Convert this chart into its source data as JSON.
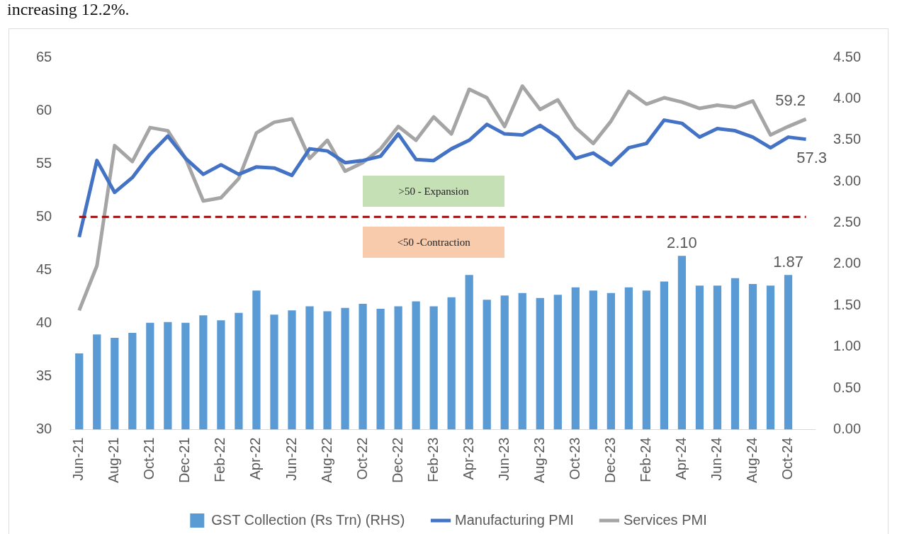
{
  "chart_data": {
    "type": "line",
    "title": "increasing 12.2%.",
    "categories": [
      "Jun-21",
      null,
      "Aug-21",
      null,
      "Oct-21",
      null,
      "Dec-21",
      null,
      "Feb-22",
      null,
      "Apr-22",
      null,
      "Jun-22",
      null,
      "Aug-22",
      null,
      "Oct-22",
      null,
      "Dec-22",
      null,
      "Feb-23",
      null,
      "Apr-23",
      null,
      "Jun-23",
      null,
      "Aug-23",
      null,
      "Oct-23",
      null,
      "Dec-23",
      null,
      "Feb-24",
      null,
      "Apr-24",
      null,
      "Jun-24",
      null,
      "Aug-24",
      null,
      "Oct-24",
      null
    ],
    "series": [
      {
        "name": "GST Collection (Rs Trn) (RHS)",
        "type": "bar",
        "axis": "y2",
        "color": "#5b9bd5",
        "values": [
          0.92,
          1.15,
          1.11,
          1.17,
          1.29,
          1.3,
          1.29,
          1.38,
          1.32,
          1.41,
          1.68,
          1.39,
          1.44,
          1.49,
          1.43,
          1.47,
          1.52,
          1.46,
          1.49,
          1.55,
          1.49,
          1.6,
          1.87,
          1.57,
          1.62,
          1.65,
          1.59,
          1.63,
          1.72,
          1.68,
          1.65,
          1.72,
          1.68,
          1.79,
          2.1,
          1.74,
          1.74,
          1.83,
          1.76,
          1.74,
          1.87,
          null
        ],
        "value_labels": [
          null,
          null,
          null,
          null,
          null,
          null,
          null,
          null,
          null,
          null,
          null,
          null,
          null,
          null,
          null,
          null,
          null,
          null,
          null,
          null,
          null,
          null,
          null,
          null,
          null,
          null,
          null,
          null,
          null,
          null,
          null,
          null,
          null,
          null,
          "2.10",
          null,
          null,
          null,
          null,
          null,
          "1.87",
          null
        ]
      },
      {
        "name": "Manufacturing PMI",
        "color": "#4472c4",
        "values": [
          48.1,
          55.3,
          52.3,
          53.7,
          55.9,
          57.6,
          55.5,
          54.0,
          54.9,
          54.0,
          54.7,
          54.6,
          53.9,
          56.4,
          56.2,
          55.1,
          55.3,
          55.7,
          57.8,
          55.4,
          55.3,
          56.4,
          57.2,
          58.7,
          57.8,
          57.7,
          58.6,
          57.5,
          55.5,
          56.0,
          54.9,
          56.5,
          56.9,
          59.1,
          58.8,
          57.5,
          58.3,
          58.1,
          57.5,
          56.5,
          57.5,
          57.3
        ],
        "value_labels": [
          null,
          null,
          null,
          null,
          null,
          null,
          null,
          null,
          null,
          null,
          null,
          null,
          null,
          null,
          null,
          null,
          null,
          null,
          null,
          null,
          null,
          null,
          null,
          null,
          null,
          null,
          null,
          null,
          null,
          null,
          null,
          null,
          null,
          null,
          null,
          null,
          null,
          null,
          null,
          null,
          null,
          "57.3"
        ]
      },
      {
        "name": "Services PMI",
        "color": "#a5a5a5",
        "values": [
          41.2,
          45.4,
          56.7,
          55.2,
          58.4,
          58.1,
          55.5,
          51.5,
          51.8,
          53.6,
          57.9,
          58.9,
          59.2,
          55.5,
          57.2,
          54.3,
          55.1,
          56.4,
          58.5,
          57.2,
          59.4,
          57.8,
          62.0,
          61.2,
          58.5,
          62.3,
          60.1,
          61.0,
          58.4,
          56.9,
          59.0,
          61.8,
          60.6,
          61.2,
          60.8,
          60.2,
          60.5,
          60.3,
          60.9,
          57.7,
          58.5,
          59.2
        ],
        "value_labels": [
          null,
          null,
          null,
          null,
          null,
          null,
          null,
          null,
          null,
          null,
          null,
          null,
          null,
          null,
          null,
          null,
          null,
          null,
          null,
          null,
          null,
          null,
          null,
          null,
          null,
          null,
          null,
          null,
          null,
          null,
          null,
          null,
          null,
          null,
          null,
          null,
          null,
          null,
          null,
          null,
          null,
          "59.2"
        ]
      }
    ],
    "ylim": [
      30,
      65
    ],
    "yticks": [
      30,
      35,
      40,
      45,
      50,
      55,
      60,
      65
    ],
    "y2lim": [
      0,
      4.5
    ],
    "y2ticks": [
      {
        "value": 0,
        "label": "0.00"
      },
      {
        "value": 0.5,
        "label": "0.50"
      },
      {
        "value": 1,
        "label": "1.00"
      },
      {
        "value": 1.5,
        "label": "1.50"
      },
      {
        "value": 2,
        "label": "2.00"
      },
      {
        "value": 2.5,
        "label": "2.50"
      },
      {
        "value": 3,
        "label": "3.00"
      },
      {
        "value": 3.5,
        "label": "3.50"
      },
      {
        "value": 4,
        "label": "4.00"
      },
      {
        "value": 4.5,
        "label": "4.50"
      }
    ],
    "ref_lines": [
      {
        "axis": "y",
        "value": 50,
        "color": "#c00000",
        "line_style": "dashed"
      }
    ],
    "annotations": [
      ">50 - Expansion",
      "<50 -Contraction"
    ],
    "legend": "bottom"
  }
}
